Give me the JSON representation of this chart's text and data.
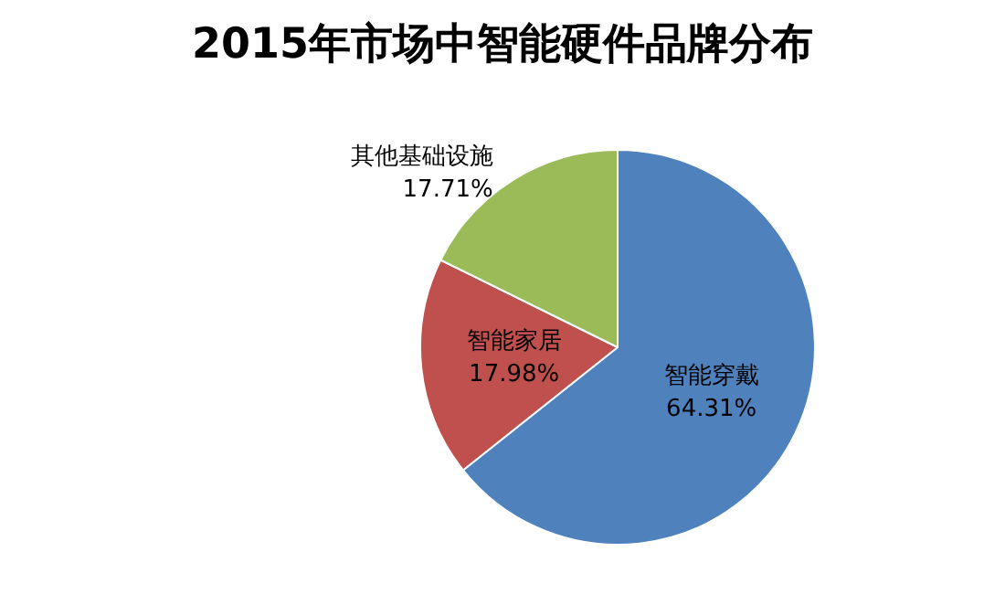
{
  "chart_data": {
    "type": "pie",
    "title": "2015年市场中智能硬件品牌分布",
    "categories": [
      "智能穿戴",
      "智能家居",
      "其他基础设施"
    ],
    "values": [
      64.31,
      17.98,
      17.71
    ],
    "value_labels": [
      "64.31%",
      "17.98%",
      "17.71%"
    ],
    "colors": [
      "#4f81bd",
      "#c0504d",
      "#9bbb59"
    ],
    "legend": false
  }
}
